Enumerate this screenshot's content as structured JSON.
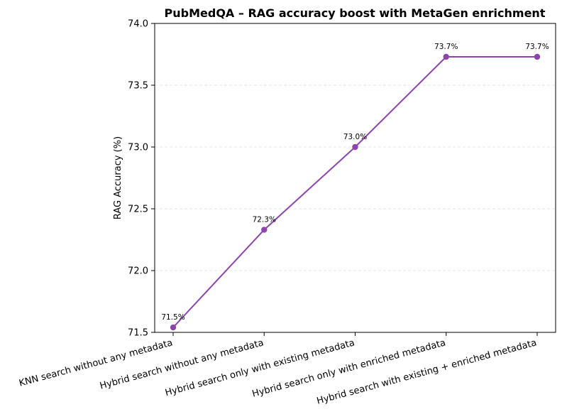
{
  "chart_data": {
    "type": "line",
    "title": "PubMedQA – RAG accuracy boost with MetaGen enrichment",
    "xlabel": "",
    "ylabel": "RAG Accuracy (%)",
    "categories": [
      "KNN search without any metadata",
      "Hybrid search without any metadata",
      "Hybrid search only with existing metadata",
      "Hybrid search only with enriched metadata",
      "Hybrid search with existing + enriched metadata"
    ],
    "values": [
      71.54,
      72.33,
      73.0,
      73.73,
      73.73
    ],
    "data_labels": [
      "71.5%",
      "72.3%",
      "73.0%",
      "73.7%",
      "73.7%"
    ],
    "ylim": [
      71.5,
      74.0
    ],
    "yticks": [
      71.5,
      72.0,
      72.5,
      73.0,
      73.5,
      74.0
    ],
    "ytick_labels": [
      "71.5",
      "72.0",
      "72.5",
      "73.0",
      "73.5",
      "74.0"
    ],
    "grid": "y-dashed",
    "legend": "none",
    "line_color": "#8e44ad"
  }
}
